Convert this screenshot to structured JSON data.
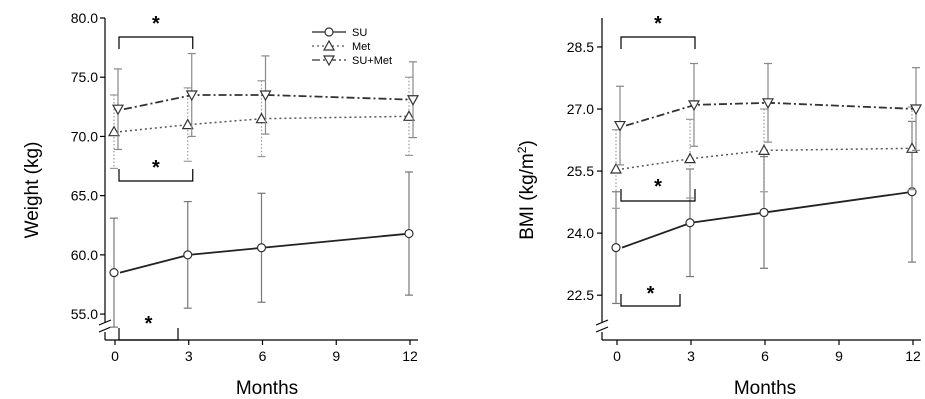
{
  "chart_data": [
    {
      "type": "line",
      "panel": "weight",
      "title": "",
      "xlabel": "Months",
      "ylabel": "Weight (kg)",
      "x": [
        0,
        3,
        6,
        12
      ],
      "xticks": [
        0,
        3,
        6,
        9,
        12
      ],
      "yticks": [
        55.0,
        60.0,
        65.0,
        70.0,
        75.0,
        80.0
      ],
      "ytick_labels": [
        "55.0",
        "60.0",
        "65.0",
        "70.0",
        "75.0",
        "80.0"
      ],
      "ylim": [
        54.5,
        80.0
      ],
      "axis_break": true,
      "legend_position": "top-right",
      "legend": [
        "SU",
        "Met",
        "SU+Met"
      ],
      "series": [
        {
          "name": "SU",
          "marker": "circle",
          "style": "solid",
          "values": [
            58.5,
            60.0,
            60.6,
            61.8
          ],
          "err": [
            4.6,
            4.5,
            4.6,
            5.2
          ]
        },
        {
          "name": "Met",
          "marker": "triangle-up",
          "style": "dotted",
          "values": [
            70.4,
            71.0,
            71.5,
            71.7
          ],
          "err": [
            3.1,
            3.1,
            3.2,
            3.3
          ]
        },
        {
          "name": "SU+Met",
          "marker": "triangle-down",
          "style": "dashdot",
          "values": [
            72.3,
            73.5,
            73.5,
            73.1
          ],
          "err": [
            3.4,
            3.5,
            3.3,
            3.2
          ]
        }
      ],
      "annotations": [
        {
          "label": "*",
          "series": "SU+Met",
          "x_from": 0,
          "x_to": 3,
          "position": "above"
        },
        {
          "label": "*",
          "series": "Met",
          "x_from": 0,
          "x_to": 3,
          "position": "below"
        },
        {
          "label": "*",
          "series": "SU",
          "x_from": 0,
          "x_to": 3,
          "position": "below"
        }
      ]
    },
    {
      "type": "line",
      "panel": "bmi",
      "title": "",
      "xlabel": "Months",
      "ylabel": "BMI (kg/m2)",
      "ylabel_base": "BMI (kg/m",
      "ylabel_sup": "2",
      "ylabel_end": ")",
      "x": [
        0,
        3,
        6,
        12
      ],
      "xticks": [
        0,
        3,
        6,
        9,
        12
      ],
      "yticks": [
        22.5,
        24.0,
        25.5,
        27.0,
        28.5
      ],
      "ytick_labels": [
        "22.5",
        "24.0",
        "25.5",
        "27.0",
        "28.5"
      ],
      "ylim": [
        21.9,
        29.2
      ],
      "axis_break": true,
      "series": [
        {
          "name": "SU",
          "marker": "circle",
          "style": "solid",
          "values": [
            23.65,
            24.25,
            24.5,
            25.0
          ],
          "err": [
            1.35,
            1.3,
            1.35,
            1.7
          ]
        },
        {
          "name": "Met",
          "marker": "triangle-up",
          "style": "dotted",
          "values": [
            25.55,
            25.8,
            26.0,
            26.05
          ],
          "err": [
            0.95,
            0.95,
            1.0,
            1.0
          ]
        },
        {
          "name": "SU+Met",
          "marker": "triangle-down",
          "style": "dashdot",
          "values": [
            26.6,
            27.1,
            27.15,
            27.0
          ],
          "err": [
            0.95,
            1.0,
            0.95,
            1.0
          ]
        }
      ],
      "annotations": [
        {
          "label": "*",
          "series": "SU+Met",
          "x_from": 0,
          "x_to": 3,
          "position": "above"
        },
        {
          "label": "*",
          "series": "Met",
          "x_from": 0,
          "x_to": 3,
          "position": "below"
        },
        {
          "label": "*",
          "series": "SU",
          "x_from": 0,
          "x_to": 3,
          "position": "below"
        }
      ]
    }
  ]
}
